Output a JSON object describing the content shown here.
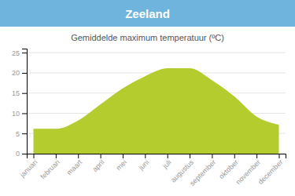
{
  "chart_data": {
    "type": "area",
    "title": "Zeeland",
    "subtitle": "Gemiddelde maximum temperatuur (ºC)",
    "categories": [
      "januari",
      "februari",
      "maart",
      "april",
      "mei",
      "juni",
      "juli",
      "augustus",
      "september",
      "oktober",
      "november",
      "december"
    ],
    "values": [
      6,
      6,
      8,
      12,
      16,
      19,
      21,
      21,
      18,
      14,
      9,
      7
    ],
    "color": "#b5cc2e",
    "ylim": [
      0,
      26
    ],
    "yticks": [
      0,
      5,
      10,
      15,
      20,
      25
    ],
    "grid": true
  }
}
